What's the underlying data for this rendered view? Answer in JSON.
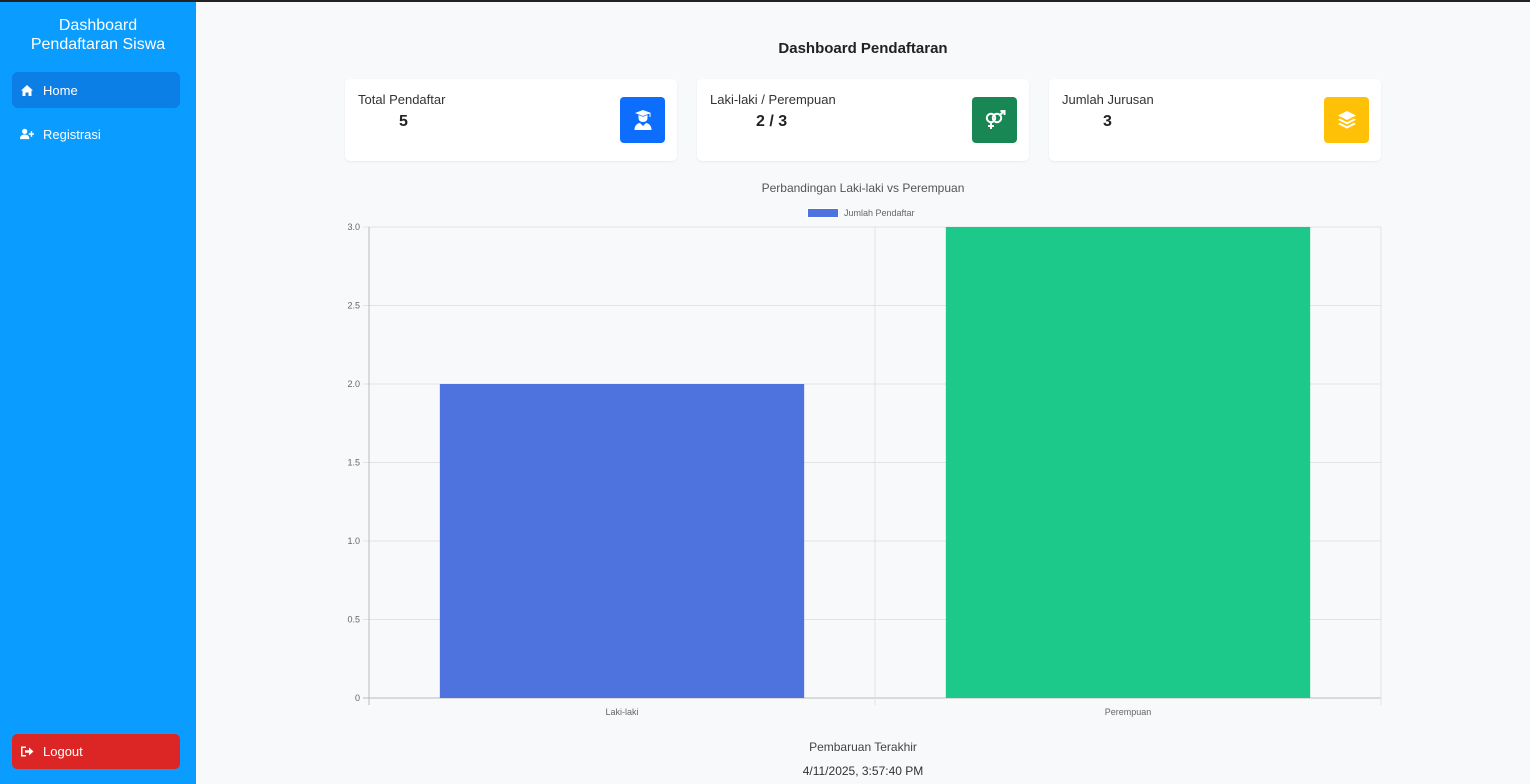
{
  "sidebar": {
    "brand_line1": "Dashboard",
    "brand_line2": "Pendaftaran Siswa",
    "items": [
      {
        "label": "Home",
        "icon": "home-icon",
        "active": true
      },
      {
        "label": "Registrasi",
        "icon": "user-plus-icon",
        "active": false
      }
    ],
    "logout_label": "Logout"
  },
  "main": {
    "title": "Dashboard Pendaftaran",
    "cards": [
      {
        "label": "Total Pendaftar",
        "value": "5",
        "icon": "graduate-icon",
        "color": "#0d6efd"
      },
      {
        "label": "Laki-laki / Perempuan",
        "value": "2 / 3",
        "icon": "gender-icon",
        "color": "#198754"
      },
      {
        "label": "Jumlah Jurusan",
        "value": "3",
        "icon": "layers-icon",
        "color": "#ffc107"
      }
    ],
    "footer_label": "Pembaruan Terakhir",
    "footer_time": "4/11/2025, 3:57:40 PM"
  },
  "chart_data": {
    "type": "bar",
    "title": "Perbandingan Laki-laki vs Perempuan",
    "categories": [
      "Laki-laki",
      "Perempuan"
    ],
    "series": [
      {
        "name": "Jumlah Pendaftar",
        "values": [
          2,
          3
        ]
      }
    ],
    "colors": [
      "#4e73df",
      "#1cc88a"
    ],
    "ylim": [
      0,
      3
    ],
    "yticks": [
      "0",
      "0.5",
      "1.0",
      "1.5",
      "2.0",
      "2.5",
      "3.0"
    ],
    "legend": "top",
    "grid": true
  }
}
